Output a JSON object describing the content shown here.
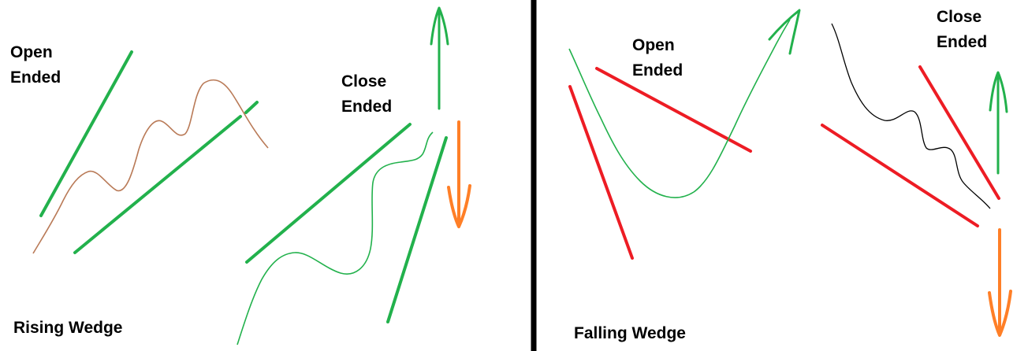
{
  "panels": [
    {
      "title": "Rising Wedge",
      "open_label": [
        "Open",
        "Ended"
      ],
      "close_label": [
        "Close",
        "Ended"
      ]
    },
    {
      "title": "Falling Wedge",
      "open_label": [
        "Open",
        "Ended"
      ],
      "close_label": [
        "Close",
        "Ended"
      ]
    }
  ],
  "colors": {
    "green_line": "#22b14c",
    "red_line": "#ed1c24",
    "price_brown": "#b97a57",
    "price_green": "#22b14c",
    "price_black": "#000000",
    "arrow_orange": "#ff7f27",
    "divider": "#000000"
  }
}
